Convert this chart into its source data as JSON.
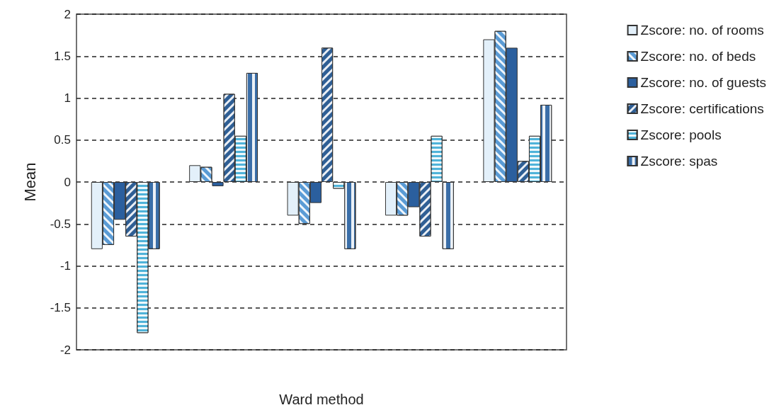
{
  "chart_data": {
    "type": "bar",
    "xlabel": "Ward method",
    "ylabel": "Mean",
    "categories": [
      null,
      null,
      null,
      null,
      null
    ],
    "series": [
      {
        "name": "Zscore: no. of rooms",
        "color": "#e3f0fa",
        "values": [
          -0.8,
          0.2,
          -0.4,
          -0.4,
          1.7
        ]
      },
      {
        "name": "Zscore: no. of beds",
        "color": "#5a9bd5",
        "values": [
          -0.75,
          0.18,
          -0.5,
          -0.4,
          1.8
        ]
      },
      {
        "name": "Zscore: no. of guests",
        "color": "#2b5f9e",
        "values": [
          -0.45,
          -0.05,
          -0.25,
          -0.3,
          1.6
        ]
      },
      {
        "name": "Zscore: certifications",
        "color": "#2f5f95",
        "values": [
          -0.65,
          1.05,
          1.6,
          -0.65,
          0.25
        ]
      },
      {
        "name": "Zscore: pools",
        "color": "#4fb3d9",
        "values": [
          -1.8,
          0.55,
          -0.08,
          0.55,
          0.55
        ]
      },
      {
        "name": "Zscore: spas",
        "color": "#3a6ea8",
        "values": [
          -0.8,
          1.3,
          -0.8,
          -0.8,
          0.92
        ]
      }
    ],
    "ylim": [
      -2,
      2
    ],
    "yticks": [
      -2,
      -1.5,
      -1,
      -0.5,
      0,
      0.5,
      1,
      1.5,
      2
    ],
    "grid": "y",
    "legend": "right"
  }
}
